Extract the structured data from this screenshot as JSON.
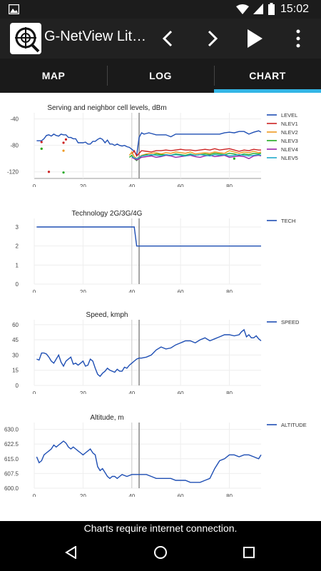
{
  "status_bar": {
    "time": "15:02"
  },
  "app_bar": {
    "title": "G-NetView Lit…"
  },
  "tabs": [
    {
      "label": "MAP",
      "selected": false
    },
    {
      "label": "LOG",
      "selected": false
    },
    {
      "label": "CHART",
      "selected": true
    }
  ],
  "colors": {
    "accent": "#33b5e5",
    "level": "#1f4fb4",
    "nlev1": "#cc2222",
    "nlev2": "#ee9922",
    "nlev3": "#22aa22",
    "nlev4": "#9922aa",
    "nlev5": "#22aacc"
  },
  "footer_text": "Charts require internet connection.",
  "chart_data": [
    {
      "type": "line",
      "title": "Serving and neighbor cell levels, dBm",
      "xlim": [
        0,
        93
      ],
      "ylim": [
        -130,
        -35
      ],
      "xticks": [
        0,
        20,
        40,
        60,
        80
      ],
      "yticks": [
        -40,
        -80,
        -120
      ],
      "cursor_x": [
        40,
        43
      ],
      "series": [
        {
          "name": "LEVEL",
          "color": "#1f4fb4",
          "mode": "line",
          "x": [
            1,
            2,
            3,
            4,
            5,
            6,
            7,
            8,
            9,
            10,
            11,
            12,
            13,
            14,
            15,
            16,
            17,
            18,
            19,
            20,
            21,
            22,
            23,
            24,
            25,
            26,
            27,
            28,
            29,
            30,
            31,
            32,
            33,
            34,
            35,
            36,
            37,
            38,
            39,
            40,
            41,
            42,
            43,
            44,
            45,
            46,
            47,
            48,
            50,
            52,
            54,
            56,
            58,
            60,
            62,
            64,
            66,
            68,
            70,
            72,
            74,
            76,
            78,
            80,
            82,
            84,
            86,
            88,
            90,
            92,
            93
          ],
          "y": [
            -73,
            -73,
            -73,
            -70,
            -65,
            -64,
            -66,
            -63,
            -65,
            -66,
            -63,
            -64,
            -64,
            -68,
            -68,
            -70,
            -70,
            -76,
            -76,
            -76,
            -75,
            -78,
            -78,
            -74,
            -74,
            -71,
            -69,
            -71,
            -76,
            -72,
            -78,
            -78,
            -80,
            -78,
            -80,
            -81,
            -80,
            -82,
            -83,
            -86,
            -89,
            -95,
            -68,
            -61,
            -63,
            -62,
            -61,
            -62,
            -64,
            -64,
            -64,
            -67,
            -63,
            -63,
            -63,
            -63,
            -63,
            -63,
            -63,
            -63,
            -63,
            -63,
            -61,
            -60,
            -61,
            -59,
            -59,
            -63,
            -60,
            -58,
            -60
          ]
        },
        {
          "name": "NLEV1",
          "color": "#cc2222",
          "mode": "mixed",
          "points": [
            [
              3,
              -75
            ],
            [
              6,
              -120
            ],
            [
              12,
              -76
            ],
            [
              13,
              -71
            ]
          ],
          "x": [
            40,
            41,
            42,
            44,
            46,
            48,
            50,
            52,
            54,
            56,
            58,
            60,
            62,
            64,
            66,
            68,
            70,
            72,
            74,
            76,
            78,
            80,
            82,
            84,
            86,
            88,
            90,
            92,
            93
          ],
          "y": [
            -93,
            -88,
            -96,
            -88,
            -89,
            -90,
            -88,
            -88,
            -87,
            -88,
            -87,
            -86,
            -87,
            -87,
            -88,
            -87,
            -86,
            -87,
            -85,
            -87,
            -86,
            -85,
            -87,
            -89,
            -87,
            -88,
            -86,
            -87,
            -87
          ]
        },
        {
          "name": "NLEV2",
          "color": "#ee9922",
          "mode": "mixed",
          "points": [
            [
              3,
              -85
            ],
            [
              12,
              -88
            ]
          ],
          "x": [
            39,
            40,
            41,
            42,
            44,
            46,
            48,
            50,
            52,
            54,
            56,
            58,
            60,
            62,
            64,
            66,
            68,
            70,
            72,
            74,
            76,
            78,
            80,
            82,
            84,
            86,
            88,
            90,
            92,
            93
          ],
          "y": [
            -95,
            -90,
            -97,
            -100,
            -95,
            -93,
            -92,
            -91,
            -93,
            -91,
            -92,
            -90,
            -91,
            -92,
            -90,
            -93,
            -92,
            -91,
            -92,
            -90,
            -91,
            -92,
            -88,
            -90,
            -92,
            -90,
            -91,
            -89,
            -91,
            -90
          ]
        },
        {
          "name": "NLEV3",
          "color": "#22aa22",
          "mode": "mixed",
          "points": [
            [
              3,
              -85
            ],
            [
              12,
              -121
            ],
            [
              82,
              -100
            ]
          ],
          "x": [
            39,
            40,
            41,
            42,
            44,
            46,
            48,
            50,
            52,
            54,
            56,
            58,
            60,
            62,
            64,
            66,
            68,
            70,
            72,
            74,
            76,
            78,
            80,
            82,
            84,
            86,
            88,
            90,
            92,
            93
          ],
          "y": [
            -98,
            -95,
            -100,
            -103,
            -96,
            -94,
            -95,
            -93,
            -94,
            -94,
            -95,
            -93,
            -94,
            -95,
            -93,
            -95,
            -94,
            -93,
            -94,
            -92,
            -93,
            -94,
            -92,
            -93,
            -95,
            -93,
            -94,
            -92,
            -93,
            -92
          ]
        },
        {
          "name": "NLEV4",
          "color": "#9922aa",
          "mode": "line",
          "x": [
            40,
            41,
            42,
            44,
            46,
            48,
            50,
            52,
            54,
            56,
            58,
            60,
            62,
            64,
            66,
            68,
            70,
            72,
            74,
            76,
            78,
            80,
            82,
            84,
            86,
            88,
            90,
            92,
            93
          ],
          "y": [
            -98,
            -100,
            -102,
            -98,
            -97,
            -96,
            -98,
            -97,
            -95,
            -96,
            -98,
            -97,
            -96,
            -95,
            -97,
            -98,
            -96,
            -95,
            -97,
            -96,
            -95,
            -98,
            -97,
            -96,
            -97,
            -100,
            -96,
            -95,
            -96
          ]
        },
        {
          "name": "NLEV5",
          "color": "#22aacc",
          "mode": "line",
          "x": [
            40,
            41,
            42,
            44,
            46,
            48,
            50,
            52,
            54,
            56,
            58,
            60,
            62,
            64,
            66,
            68,
            70,
            72,
            74,
            76,
            78,
            80,
            82,
            84,
            86,
            88,
            90,
            92,
            93
          ],
          "y": [
            -97,
            -99,
            -100,
            -96,
            -95,
            -94,
            -95,
            -96,
            -94,
            -95,
            -94,
            -95,
            -96,
            -94,
            -95,
            -94,
            -95,
            -96,
            -94,
            -95,
            -94,
            -96,
            -95,
            -94,
            -95,
            -96,
            -95,
            -94,
            -95
          ]
        }
      ]
    },
    {
      "type": "line",
      "title": "Technology 2G/3G/4G",
      "xlim": [
        0,
        93
      ],
      "ylim": [
        0,
        3.3
      ],
      "xticks": [
        0,
        20,
        40,
        60,
        80
      ],
      "yticks": [
        3,
        2,
        1,
        0
      ],
      "cursor_x": [
        40,
        43
      ],
      "series": [
        {
          "name": "TECH",
          "color": "#1f4fb4",
          "mode": "line",
          "x": [
            1,
            41,
            42,
            93
          ],
          "y": [
            3,
            3,
            2,
            2
          ]
        }
      ]
    },
    {
      "type": "line",
      "title": "Speed, kmph",
      "xlim": [
        0,
        93
      ],
      "ylim": [
        0,
        62
      ],
      "xticks": [
        0,
        20,
        40,
        60,
        80
      ],
      "yticks": [
        60,
        45,
        30,
        15,
        0
      ],
      "cursor_x": [
        40,
        43
      ],
      "series": [
        {
          "name": "SPEED",
          "color": "#1f4fb4",
          "mode": "line",
          "x": [
            1,
            2,
            3,
            4,
            5,
            6,
            7,
            8,
            9,
            10,
            11,
            12,
            13,
            14,
            15,
            16,
            17,
            18,
            19,
            20,
            21,
            22,
            23,
            24,
            25,
            26,
            27,
            28,
            29,
            30,
            31,
            32,
            33,
            34,
            35,
            36,
            37,
            38,
            39,
            40,
            41,
            42,
            43,
            44,
            46,
            48,
            50,
            52,
            54,
            56,
            58,
            60,
            62,
            64,
            66,
            68,
            70,
            72,
            74,
            76,
            78,
            80,
            82,
            84,
            85,
            86,
            87,
            88,
            89,
            90,
            91,
            92,
            93
          ],
          "y": [
            26,
            25,
            32,
            32,
            31,
            28,
            24,
            22,
            26,
            30,
            23,
            19,
            24,
            26,
            28,
            21,
            22,
            20,
            22,
            24,
            19,
            20,
            26,
            24,
            17,
            11,
            9,
            12,
            14,
            17,
            15,
            14,
            13,
            16,
            14,
            14,
            18,
            17,
            20,
            22,
            24,
            26,
            27,
            27,
            28,
            30,
            35,
            38,
            36,
            37,
            40,
            42,
            44,
            44,
            42,
            45,
            47,
            44,
            46,
            48,
            50,
            50,
            49,
            50,
            53,
            55,
            48,
            50,
            47,
            47,
            49,
            46,
            44
          ]
        }
      ]
    },
    {
      "type": "line",
      "title": "Altitude, m",
      "xlim": [
        0,
        93
      ],
      "ylim": [
        600,
        632
      ],
      "xticks": [
        0,
        20,
        40,
        60,
        80
      ],
      "yticks": [
        630.0,
        622.5,
        615.0,
        607.5,
        600.0
      ],
      "cursor_x": [
        40,
        43
      ],
      "series": [
        {
          "name": "ALTITUDE",
          "color": "#1f4fb4",
          "mode": "line",
          "x": [
            1,
            2,
            3,
            4,
            5,
            6,
            7,
            8,
            9,
            10,
            11,
            12,
            13,
            14,
            15,
            16,
            17,
            18,
            19,
            20,
            21,
            22,
            23,
            24,
            25,
            26,
            27,
            28,
            29,
            30,
            31,
            32,
            33,
            34,
            35,
            36,
            38,
            40,
            42,
            44,
            46,
            48,
            50,
            52,
            54,
            56,
            58,
            60,
            62,
            64,
            66,
            68,
            70,
            72,
            74,
            76,
            78,
            80,
            82,
            84,
            86,
            88,
            90,
            92,
            93
          ],
          "y": [
            616,
            613,
            614,
            617,
            618,
            619,
            620,
            622,
            621,
            622,
            623,
            624,
            623,
            621,
            620,
            621,
            620,
            619,
            618,
            617,
            618,
            619,
            620,
            618,
            617,
            611,
            609,
            610,
            608,
            606,
            605,
            606,
            606,
            605,
            606,
            607,
            606,
            607,
            607,
            607,
            607,
            606,
            605,
            605,
            605,
            605,
            604,
            604,
            604,
            603,
            603,
            603,
            604,
            605,
            610,
            614,
            615,
            617,
            617,
            616,
            617,
            617,
            616,
            615,
            617
          ]
        }
      ]
    }
  ]
}
